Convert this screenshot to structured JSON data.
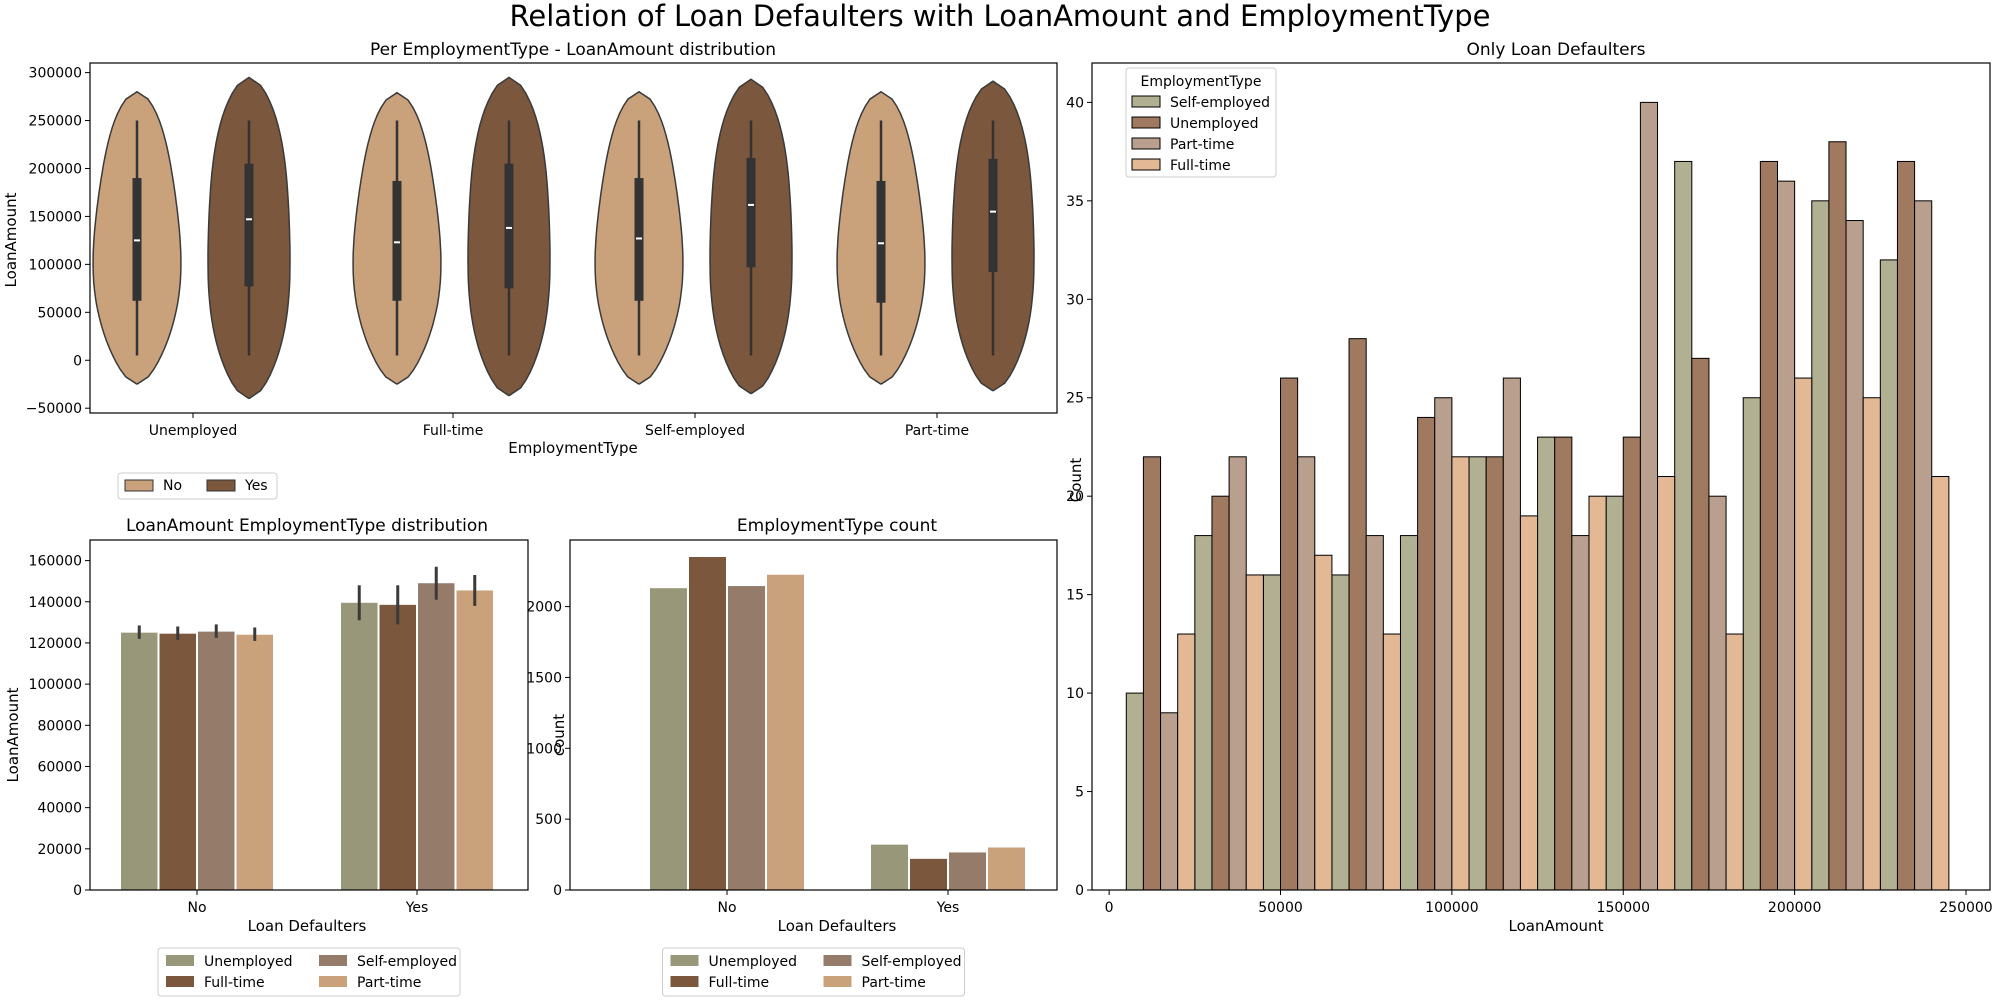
{
  "suptitle": "Relation of Loan Defaulters with LoanAmount and EmploymentType",
  "colors": {
    "no": "#c9a27c",
    "yes": "#7a573d",
    "unemployed": "#999779",
    "fulltime": "#7a573d",
    "selfemployed": "#957b6a",
    "parttime": "#c9a27c",
    "hist_selfemployed": "#b2b092",
    "hist_unemployed": "#a07a60",
    "hist_parttime": "#b89f8e",
    "hist_fulltime": "#e2b994"
  },
  "chart_data": [
    {
      "id": "violin",
      "type": "violin",
      "title": "Per EmploymentType - LoanAmount distribution",
      "xlabel": "EmploymentType",
      "ylabel": "LoanAmount",
      "categories": [
        "Unemployed",
        "Full-time",
        "Self-employed",
        "Part-time"
      ],
      "hue_labels": [
        "No",
        "Yes"
      ],
      "ylim": [
        -55000,
        310000
      ],
      "yticks": [
        -50000,
        0,
        50000,
        100000,
        150000,
        200000,
        250000,
        300000
      ],
      "ytick_labels": [
        "−50000",
        "0",
        "50000",
        "100000",
        "150000",
        "200000",
        "250000",
        "300000"
      ],
      "groups": [
        {
          "no": {
            "min": 5000,
            "q1": 62000,
            "median": 125000,
            "q3": 190000,
            "max": 250000,
            "lo": -25000,
            "hi": 280000
          },
          "yes": {
            "min": 5000,
            "q1": 77000,
            "median": 147000,
            "q3": 205000,
            "max": 250000,
            "lo": -40000,
            "hi": 295000
          }
        },
        {
          "no": {
            "min": 5000,
            "q1": 62000,
            "median": 123000,
            "q3": 187000,
            "max": 250000,
            "lo": -25000,
            "hi": 279000
          },
          "yes": {
            "min": 5000,
            "q1": 75000,
            "median": 138000,
            "q3": 205000,
            "max": 250000,
            "lo": -37000,
            "hi": 295000
          }
        },
        {
          "no": {
            "min": 5000,
            "q1": 62000,
            "median": 127000,
            "q3": 190000,
            "max": 250000,
            "lo": -25000,
            "hi": 280000
          },
          "yes": {
            "min": 5000,
            "q1": 97000,
            "median": 162000,
            "q3": 211000,
            "max": 250000,
            "lo": -35000,
            "hi": 293000
          }
        },
        {
          "no": {
            "min": 5000,
            "q1": 60000,
            "median": 122000,
            "q3": 187000,
            "max": 250000,
            "lo": -25000,
            "hi": 280000
          },
          "yes": {
            "min": 5000,
            "q1": 92000,
            "median": 155000,
            "q3": 210000,
            "max": 250000,
            "lo": -32000,
            "hi": 291000
          }
        }
      ]
    },
    {
      "id": "barmean",
      "type": "bar",
      "title": "LoanAmount EmploymentType distribution",
      "xlabel": "Loan Defaulters",
      "ylabel": "LoanAmount",
      "categories": [
        "No",
        "Yes"
      ],
      "ylim": [
        0,
        170000
      ],
      "yticks": [
        0,
        20000,
        40000,
        60000,
        80000,
        100000,
        120000,
        140000,
        160000
      ],
      "ytick_labels": [
        "0",
        "20000",
        "40000",
        "60000",
        "80000",
        "100000",
        "120000",
        "140000",
        "160000"
      ],
      "series": [
        {
          "name": "Unemployed",
          "values": [
            125000,
            139500
          ],
          "err_low": [
            122000,
            131000
          ],
          "err_high": [
            128500,
            148000
          ]
        },
        {
          "name": "Full-time",
          "values": [
            124500,
            138500
          ],
          "err_low": [
            121500,
            129000
          ],
          "err_high": [
            128000,
            148000
          ]
        },
        {
          "name": "Self-employed",
          "values": [
            125500,
            149000
          ],
          "err_low": [
            122500,
            141000
          ],
          "err_high": [
            129000,
            157000
          ]
        },
        {
          "name": "Part-time",
          "values": [
            124000,
            145500
          ],
          "err_low": [
            121000,
            138000
          ],
          "err_high": [
            127500,
            153000
          ]
        }
      ],
      "legend": [
        [
          "Unemployed",
          "Self-employed"
        ],
        [
          "Full-time",
          "Part-time"
        ]
      ]
    },
    {
      "id": "count",
      "type": "bar",
      "title": "EmploymentType count",
      "xlabel": "Loan Defaulters",
      "ylabel": "count",
      "categories": [
        "No",
        "Yes"
      ],
      "ylim": [
        0,
        2470
      ],
      "yticks": [
        0,
        500,
        1000,
        1500,
        2000
      ],
      "ytick_labels": [
        "0",
        "500",
        "1000",
        "1500",
        "2000"
      ],
      "series": [
        {
          "name": "Unemployed",
          "values": [
            2130,
            320
          ]
        },
        {
          "name": "Full-time",
          "values": [
            2350,
            220
          ]
        },
        {
          "name": "Self-employed",
          "values": [
            2145,
            265
          ]
        },
        {
          "name": "Part-time",
          "values": [
            2225,
            300
          ]
        }
      ],
      "legend": [
        [
          "Unemployed",
          "Self-employed"
        ],
        [
          "Full-time",
          "Part-time"
        ]
      ]
    },
    {
      "id": "hist",
      "type": "bar",
      "title": "Only Loan Defaulters",
      "xlabel": "LoanAmount",
      "ylabel": "Count",
      "legend_title": "EmploymentType",
      "xlim": [
        -5000,
        257000
      ],
      "xticks": [
        0,
        50000,
        100000,
        150000,
        200000,
        250000
      ],
      "xtick_labels": [
        "0",
        "50000",
        "100000",
        "150000",
        "200000",
        "250000"
      ],
      "ylim": [
        0,
        42
      ],
      "yticks": [
        0,
        5,
        10,
        15,
        20,
        25,
        30,
        35,
        40
      ],
      "ytick_labels": [
        "0",
        "5",
        "10",
        "15",
        "20",
        "25",
        "30",
        "35",
        "40"
      ],
      "bins_start": 5000,
      "bin_width": 20000,
      "series": [
        {
          "name": "Self-employed",
          "values": [
            10,
            18,
            16,
            16,
            18,
            22,
            23,
            20,
            37,
            25,
            35,
            32
          ]
        },
        {
          "name": "Unemployed",
          "values": [
            22,
            20,
            26,
            28,
            24,
            22,
            23,
            23,
            27,
            37,
            38,
            37
          ]
        },
        {
          "name": "Part-time",
          "values": [
            9,
            22,
            22,
            18,
            25,
            26,
            18,
            40,
            20,
            36,
            34,
            35
          ]
        },
        {
          "name": "Full-time",
          "values": [
            13,
            16,
            17,
            13,
            22,
            19,
            20,
            21,
            13,
            26,
            25,
            21
          ]
        }
      ]
    }
  ]
}
